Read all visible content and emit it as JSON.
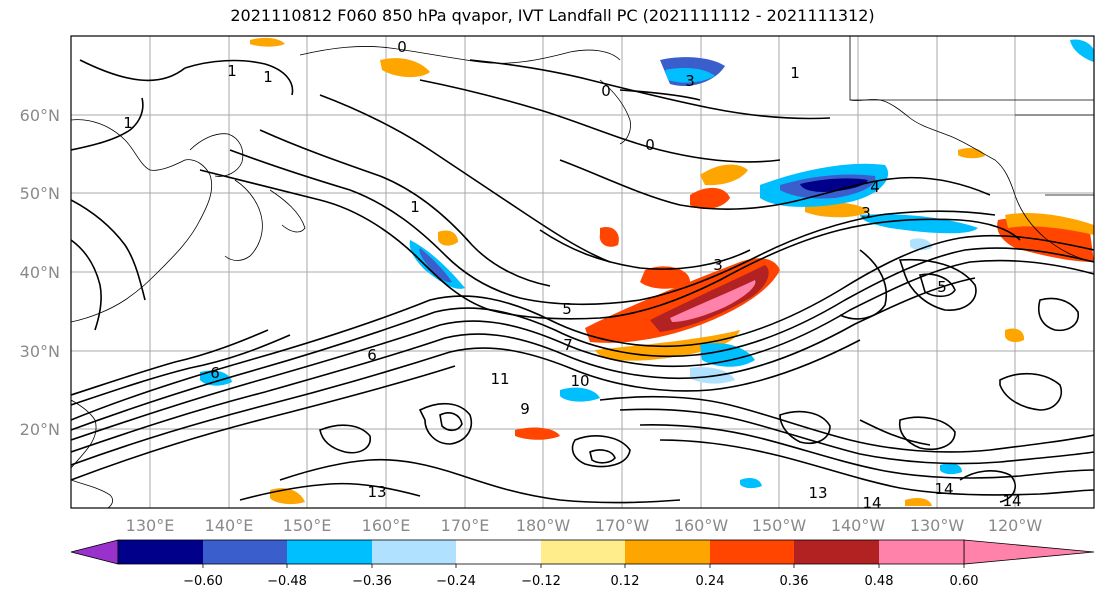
{
  "title": "2021110812 F060 850 hPa qvapor, IVT Landfall PC (2021111112 - 2021111312)",
  "map": {
    "lat_labels": [
      "60°N",
      "50°N",
      "40°N",
      "30°N",
      "20°N"
    ],
    "lon_labels": [
      "130°E",
      "140°E",
      "150°E",
      "160°E",
      "170°E",
      "180°W",
      "170°W",
      "160°W",
      "150°W",
      "140°W",
      "130°W",
      "120°W"
    ],
    "contour_labels": [
      "0",
      "1",
      "1",
      "1",
      "3",
      "1",
      "1",
      "0",
      "4",
      "3",
      "3",
      "5",
      "5",
      "7",
      "6",
      "6",
      "10",
      "11",
      "9",
      "13",
      "13",
      "14",
      "14",
      "14",
      "0"
    ]
  },
  "colorbar": {
    "colors": [
      "#9932cc",
      "#00008b",
      "#3a5fcd",
      "#00bfff",
      "#b0e2ff",
      "#ffffff",
      "#ffec8b",
      "#ffa500",
      "#ff4500",
      "#b22222",
      "#ff82ab"
    ],
    "tick_labels": [
      "−0.60",
      "−0.48",
      "−0.36",
      "−0.24",
      "−0.12",
      "0.12",
      "0.24",
      "0.36",
      "0.48",
      "0.60"
    ]
  }
}
